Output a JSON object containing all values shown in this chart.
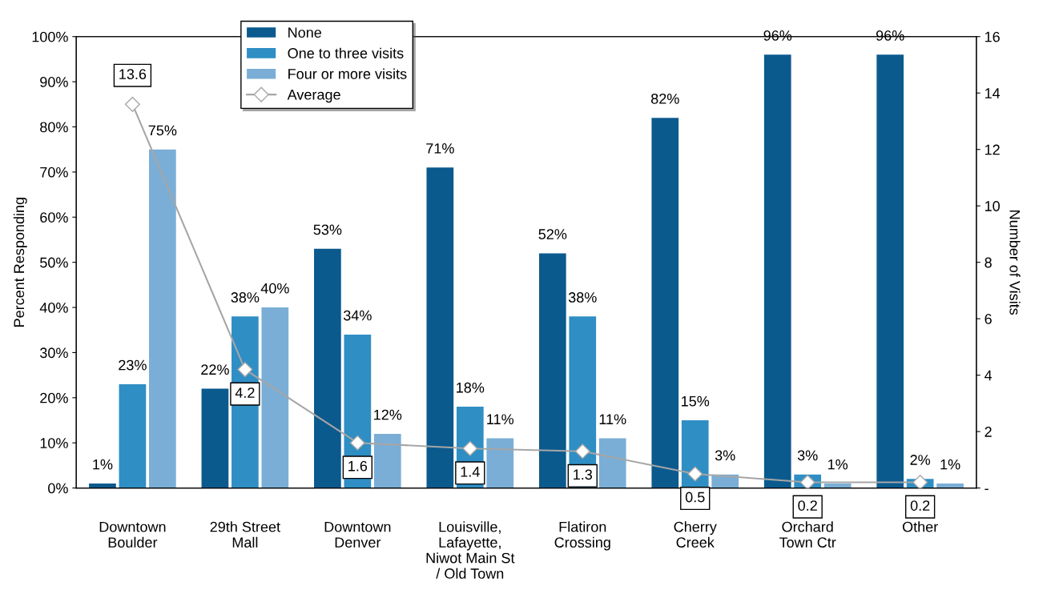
{
  "chart_data": {
    "type": "bar",
    "categories": [
      "Downtown\nBoulder",
      "29th Street\nMall",
      "Downtown\nDenver",
      "Louisville,\nLafayette,\nNiwot Main St\n/ Old Town",
      "Flatiron\nCrossing",
      "Cherry\nCreek",
      "Orchard\nTown Ctr",
      "Other"
    ],
    "series": [
      {
        "name": "None",
        "color": "#0b5a8e",
        "values": [
          1,
          22,
          53,
          71,
          52,
          82,
          96,
          96
        ],
        "value_labels": [
          "1%",
          "22%",
          "53%",
          "71%",
          "52%",
          "82%",
          "96%",
          "96%"
        ]
      },
      {
        "name": "One to three visits",
        "color": "#2f8ec4",
        "values": [
          23,
          38,
          34,
          18,
          38,
          15,
          3,
          2
        ],
        "value_labels": [
          "23%",
          "38%",
          "34%",
          "18%",
          "38%",
          "15%",
          "3%",
          "2%"
        ]
      },
      {
        "name": "Four or more visits",
        "color": "#7aaed6",
        "values": [
          75,
          40,
          12,
          11,
          11,
          3,
          1,
          1
        ],
        "value_labels": [
          "75%",
          "40%",
          "12%",
          "11%",
          "11%",
          "3%",
          "1%",
          "1%"
        ]
      },
      {
        "name": "Average",
        "type": "line",
        "axis": "y2",
        "color": "#a6a6a6",
        "marker": "diamond",
        "values": [
          13.6,
          4.2,
          1.6,
          1.4,
          1.3,
          0.5,
          0.2,
          0.2
        ],
        "value_labels": [
          "13.6",
          "4.2",
          "1.6",
          "1.4",
          "1.3",
          "0.5",
          "0.2",
          "0.2"
        ]
      }
    ],
    "ylabel": "Percent Responding",
    "y2label": "Number of Visits",
    "ylim": [
      0,
      100
    ],
    "yticks": [
      {
        "value": 0,
        "label": "0%"
      },
      {
        "value": 10,
        "label": "10%"
      },
      {
        "value": 20,
        "label": "20%"
      },
      {
        "value": 30,
        "label": "30%"
      },
      {
        "value": 40,
        "label": "40%"
      },
      {
        "value": 50,
        "label": "50%"
      },
      {
        "value": 60,
        "label": "60%"
      },
      {
        "value": 70,
        "label": "70%"
      },
      {
        "value": 80,
        "label": "80%"
      },
      {
        "value": 90,
        "label": "90%"
      },
      {
        "value": 100,
        "label": "100%"
      }
    ],
    "y2lim": [
      0,
      16
    ],
    "y2ticks": [
      {
        "value": 0,
        "label": "-"
      },
      2,
      4,
      6,
      8,
      10,
      12,
      14,
      16
    ],
    "grid": false,
    "legend": "top left"
  }
}
